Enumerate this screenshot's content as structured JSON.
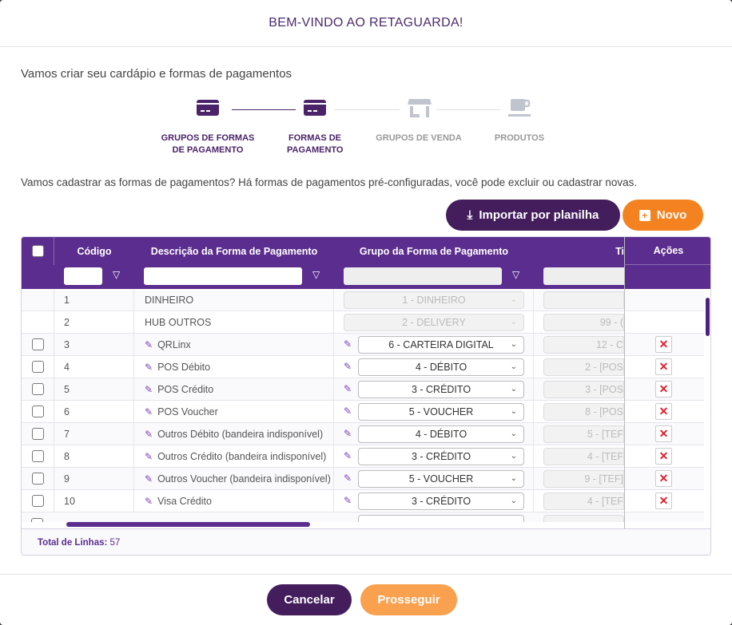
{
  "title": "BEM-VINDO AO RETAGUARDA!",
  "intro": "Vamos criar seu cardápio e formas de pagamentos",
  "steps": [
    {
      "label": "GRUPOS DE FORMAS DE PAGAMENTO",
      "icon": "credit-card-icon",
      "active": true
    },
    {
      "label": "FORMAS DE PAGAMENTO",
      "icon": "credit-card-icon",
      "active": true
    },
    {
      "label": "GRUPOS DE VENDA",
      "icon": "store-icon",
      "active": false
    },
    {
      "label": "PRODUTOS",
      "icon": "coffee-cup-icon",
      "active": false
    }
  ],
  "description": "Vamos cadastrar as formas de pagamentos? Há formas de pagamentos pré-configuradas, você pode excluir ou cadastrar novas.",
  "buttons": {
    "import": "Importar por planilha",
    "new": "Novo",
    "cancel": "Cancelar",
    "proceed": "Prosseguir"
  },
  "colors": {
    "primary": "#5b2d8e",
    "dark": "#431d5c",
    "orange": "#f58220",
    "orange_light": "#f9a14f"
  },
  "grid": {
    "columns": [
      "Código",
      "Descrição da Forma de Pagamento",
      "Grupo da Forma de Pagamento",
      "Ti",
      "Ações"
    ],
    "rows": [
      {
        "code": "1",
        "desc": "DINHEIRO",
        "group": "1 - DINHEIRO",
        "tipo": "",
        "editable": false
      },
      {
        "code": "2",
        "desc": "HUB OUTROS",
        "group": "2 - DELIVERY",
        "tipo": "99 - (",
        "editable": false
      },
      {
        "code": "3",
        "desc": "QRLinx",
        "group": "6 - CARTEIRA DIGITAL",
        "tipo": "12 - C",
        "editable": true
      },
      {
        "code": "4",
        "desc": "POS Débito",
        "group": "4 - DÉBITO",
        "tipo": "2 - [POS",
        "editable": true
      },
      {
        "code": "5",
        "desc": "POS Crédito",
        "group": "3 - CRÉDITO",
        "tipo": "3 - [POS",
        "editable": true
      },
      {
        "code": "6",
        "desc": "POS Voucher",
        "group": "5 - VOUCHER",
        "tipo": "8 - [POS",
        "editable": true
      },
      {
        "code": "7",
        "desc": "Outros Débito (bandeira indisponível)",
        "group": "4 - DÉBITO",
        "tipo": "5 - [TEF",
        "editable": true
      },
      {
        "code": "8",
        "desc": "Outros Crédito (bandeira indisponível)",
        "group": "3 - CRÉDITO",
        "tipo": "4 - [TEF",
        "editable": true
      },
      {
        "code": "9",
        "desc": "Outros Voucher (bandeira indisponível)",
        "group": "5 - VOUCHER",
        "tipo": "9 - [TEF]",
        "editable": true
      },
      {
        "code": "10",
        "desc": "Visa Crédito",
        "group": "3 - CRÉDITO",
        "tipo": "4 - [TEF",
        "editable": true
      }
    ],
    "total_label": "Total de Linhas:",
    "total": "57"
  }
}
